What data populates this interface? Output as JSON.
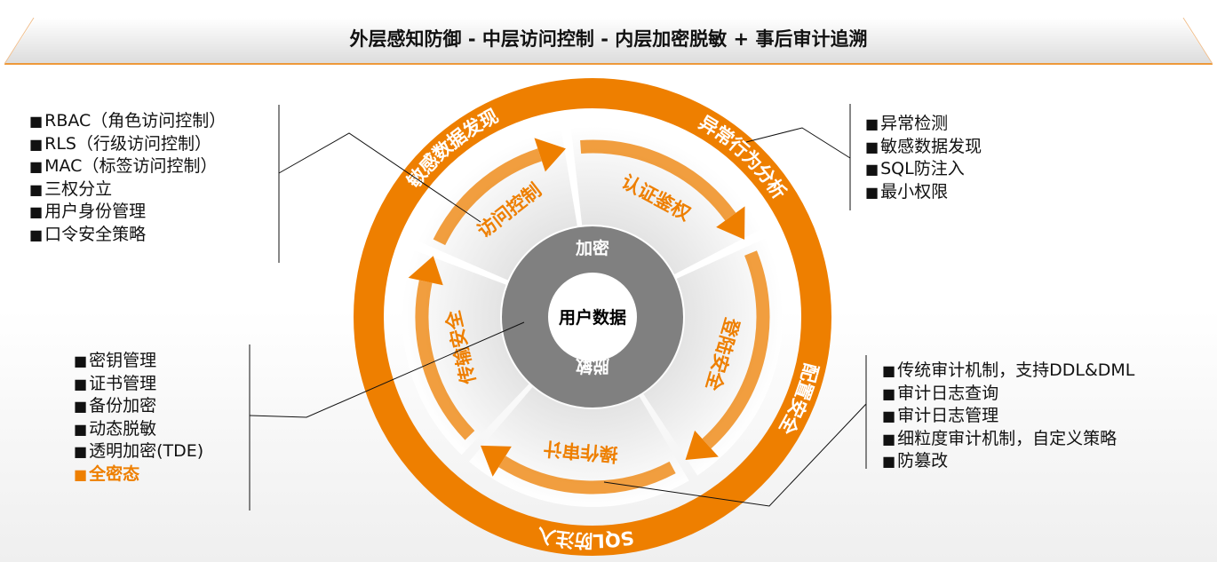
{
  "header": {
    "title": "外层感知防御 - 中层访问控制 - 内层加密脱敏 + 事后审计追溯"
  },
  "colors": {
    "accent": "#ee7f00",
    "ring_gray": "#808080"
  },
  "diagram": {
    "center": "用户数据",
    "inner_ring": [
      "加密",
      "脱敏"
    ],
    "segments": [
      "访问控制",
      "认证鉴权",
      "登陆安全",
      "操作审计",
      "传输安全"
    ],
    "outer_ring": [
      "敏感数据发现",
      "异常行为分析",
      "配置安全",
      "SQL防注入"
    ]
  },
  "lists": {
    "access_control": [
      "RBAC（角色访问控制）",
      "RLS（行级访问控制）",
      "MAC（标签访问控制）",
      "三权分立",
      "用户身份管理",
      "口令安全策略"
    ],
    "perception": [
      "异常检测",
      "敏感数据发现",
      "SQL防注入",
      "最小权限"
    ],
    "encryption": [
      "密钥管理",
      "证书管理",
      "备份加密",
      "动态脱敏",
      "透明加密(TDE)",
      "全密态"
    ],
    "audit": [
      "传统审计机制，支持DDL&DML",
      "审计日志查询",
      "审计日志管理",
      "细粒度审计机制，自定义策略",
      "防篡改"
    ]
  }
}
